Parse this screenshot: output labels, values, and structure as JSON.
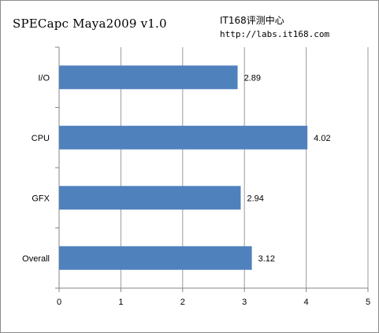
{
  "chart_data": {
    "type": "bar",
    "orientation": "horizontal",
    "title": "SPECapc Maya2009 v1.0",
    "categories": [
      "I/O",
      "CPU",
      "GFX",
      "Overall"
    ],
    "values": [
      2.89,
      4.02,
      2.94,
      3.12
    ],
    "data_labels": [
      "2.89",
      "4.02",
      "2.94",
      "3.12"
    ],
    "xlim": [
      0,
      5
    ],
    "x_ticks": [
      "0",
      "1",
      "2",
      "3",
      "4",
      "5"
    ],
    "grid": "vertical",
    "legend": "none",
    "bar_color": "#4f81bd",
    "grid_color": "#9a9a9a"
  },
  "watermark": {
    "line1": "IT168评测中心",
    "line2": "http://labs.it168.com"
  }
}
